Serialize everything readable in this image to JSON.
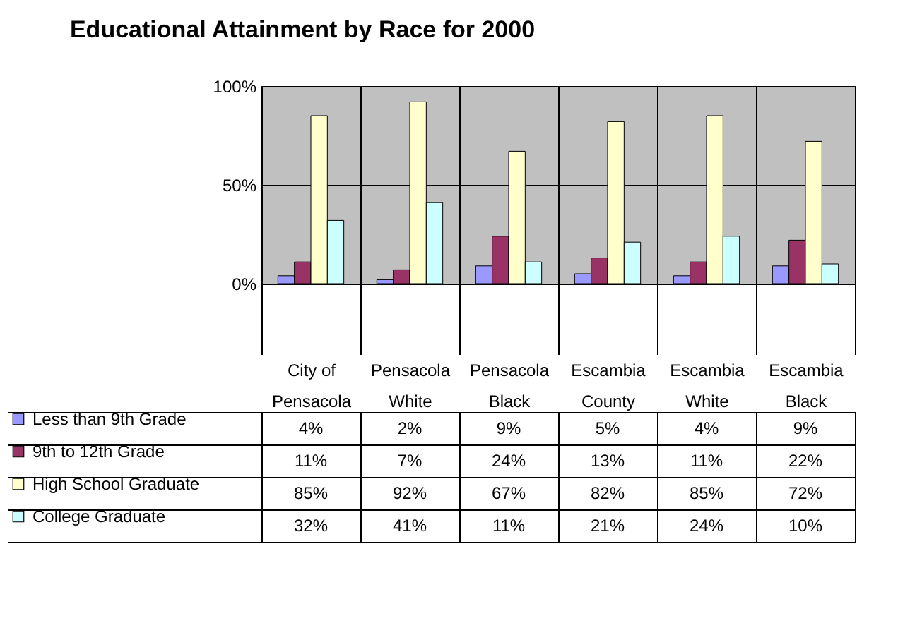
{
  "chart_data": {
    "type": "bar",
    "title": "Educational Attainment by Race for 2000",
    "categories": [
      "City of Pensacola",
      "Pensacola White",
      "Pensacola Black",
      "Escambia County",
      "Escambia White",
      "Escambia Black"
    ],
    "series": [
      {
        "name": "Less than 9th Grade",
        "color": "#9999ff",
        "values": [
          4,
          2,
          9,
          5,
          4,
          9
        ],
        "value_labels": [
          "4%",
          "2%",
          "9%",
          "5%",
          "4%",
          "9%"
        ]
      },
      {
        "name": "9th to 12th Grade",
        "color": "#993366",
        "values": [
          11,
          7,
          24,
          13,
          11,
          22
        ],
        "value_labels": [
          "11%",
          "7%",
          "24%",
          "13%",
          "11%",
          "22%"
        ]
      },
      {
        "name": "High School Graduate",
        "color": "#ffffcc",
        "values": [
          85,
          92,
          67,
          82,
          85,
          72
        ],
        "value_labels": [
          "85%",
          "92%",
          "67%",
          "82%",
          "85%",
          "72%"
        ]
      },
      {
        "name": "College Graduate",
        "color": "#ccffff",
        "values": [
          32,
          41,
          11,
          21,
          24,
          10
        ],
        "value_labels": [
          "32%",
          "41%",
          "11%",
          "21%",
          "24%",
          "10%"
        ]
      }
    ],
    "ylim": [
      0,
      100
    ],
    "yticks": [
      {
        "value": 0,
        "label": "0%"
      },
      {
        "value": 50,
        "label": "50%"
      },
      {
        "value": 100,
        "label": "100%"
      }
    ],
    "grid": "y",
    "legend": "left"
  }
}
